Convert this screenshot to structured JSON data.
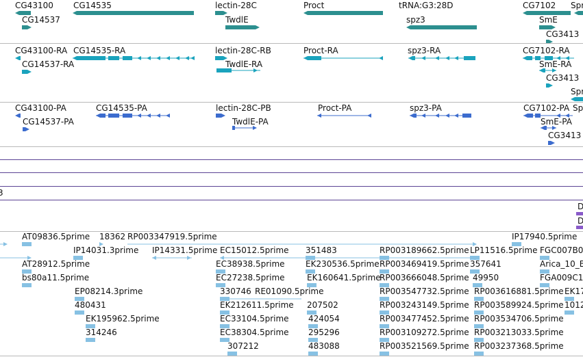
{
  "colors": {
    "gene": "#2c8f8f",
    "transcript_ra": "#1aa3bd",
    "transcript_pa": "#3c6cce",
    "ests": "#87c1e3",
    "divider_grey": "#b9b9b9",
    "divider_purple": "#5a4294",
    "purple_feature": "#8a5bc9"
  },
  "tracks": {
    "genes": {
      "labels": [
        "CG43100",
        "CG14535",
        "lectin-28C",
        "Proct",
        "tRNA:G3:28D",
        "CG7102",
        "Spr",
        "CG14537",
        "TwdlE",
        "spz3",
        "SmE",
        "CG3413"
      ]
    },
    "ra": {
      "labels": [
        "CG43100-RA",
        "CG14535-RA",
        "lectin-28C-RB",
        "Proct-RA",
        "spz3-RA",
        "CG7102-RA",
        "CG14537-RA",
        "TwdlE-RA",
        "SmE-RA",
        "CG3413",
        "Spr"
      ]
    },
    "pa": {
      "labels": [
        "CG43100-PA",
        "CG14535-PA",
        "lectin-28C-PB",
        "Proct-PA",
        "spz3-PA",
        "CG7102-PA",
        "Sp",
        "CG14537-PA",
        "TwdlE-PA",
        "SmE-PA",
        "CG3413"
      ]
    },
    "misc": {
      "edge_label": "3",
      "right_labels": [
        "D",
        "D"
      ]
    },
    "ests": {
      "labels": [
        "AT09836.5prime",
        "18362",
        "RP003347919.5prime",
        "IP17940.5prime",
        "IP14031.3prime",
        "IP14331.5prime",
        "EC15012.5prime",
        "351483",
        "RP003189662.5prime",
        "LP11516.5prime",
        "FGC007B0",
        "AT28912.5prime",
        "EC38938.5prime",
        "EK230536.5prime",
        "RP003469419.5prime",
        "357641",
        "Arica_10_B",
        "bs80a11.5prime",
        "EC27238.5prime",
        "EK160641.5prime",
        "RP003666048.5prime",
        "49950",
        "FGA009C1",
        "EP08214.3prime",
        "330746",
        "RE01090.5prime",
        "RP003547732.5prime",
        "RP003616881.5prime",
        "EK17",
        "480431",
        "EK212611.5prime",
        "207502",
        "RP003243149.5prime",
        "RP003589924.5prime",
        "1012",
        "EK195962.5prime",
        "EC33104.5prime",
        "424054",
        "RP003477452.5prime",
        "RP003534706.5prime",
        "314246",
        "EC38304.5prime",
        "295296",
        "RP003109272.5prime",
        "RP003213033.5prime",
        "307212",
        "483088",
        "RP003521569.5prime",
        "RP003237368.5prime"
      ]
    }
  }
}
